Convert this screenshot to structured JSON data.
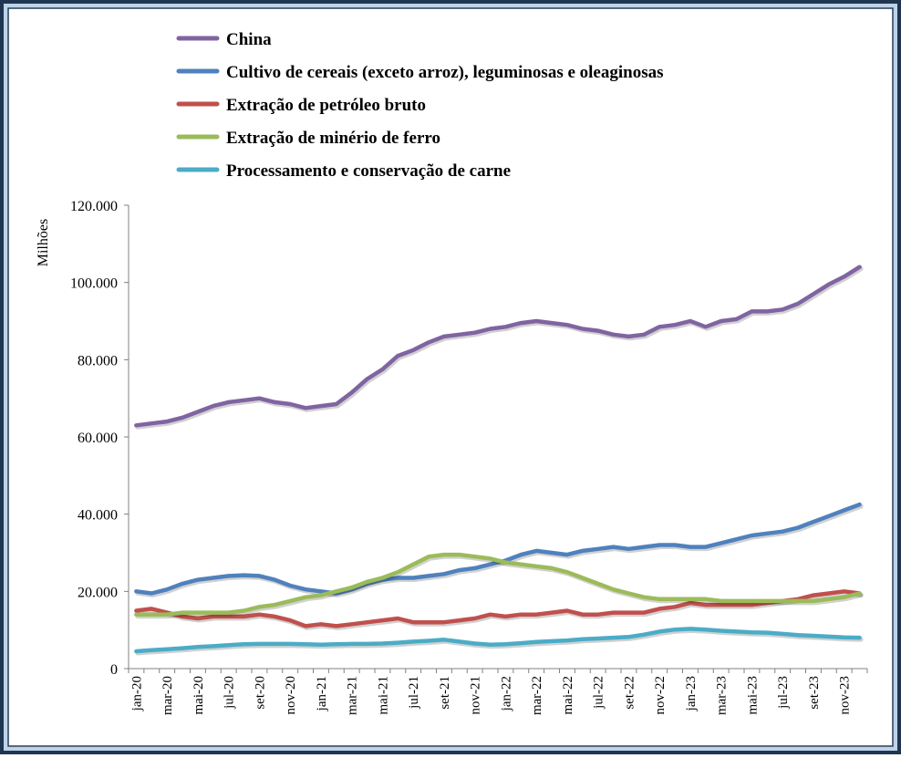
{
  "chart_data": {
    "type": "line",
    "title": "",
    "xlabel": "",
    "ylabel": "Milhões",
    "ylim": [
      0,
      120000
    ],
    "y_ticks": [
      "0",
      "20.000",
      "40.000",
      "60.000",
      "80.000",
      "100.000",
      "120.000"
    ],
    "x_ticks": [
      "jan-20",
      "mar-20",
      "mai-20",
      "jul-20",
      "set-20",
      "nov-20",
      "jan-21",
      "mar-21",
      "mai-21",
      "jul-21",
      "set-21",
      "nov-21",
      "jan-22",
      "mar-22",
      "mai-22",
      "jul-22",
      "set-22",
      "nov-22",
      "jan-23",
      "mar-23",
      "mai-23",
      "jul-23",
      "set-23",
      "nov-23"
    ],
    "grid": false,
    "legend_position": "top",
    "categories": [
      "jan-20",
      "fev-20",
      "mar-20",
      "abr-20",
      "mai-20",
      "jun-20",
      "jul-20",
      "ago-20",
      "set-20",
      "out-20",
      "nov-20",
      "dez-20",
      "jan-21",
      "fev-21",
      "mar-21",
      "abr-21",
      "mai-21",
      "jun-21",
      "jul-21",
      "ago-21",
      "set-21",
      "out-21",
      "nov-21",
      "dez-21",
      "jan-22",
      "fev-22",
      "mar-22",
      "abr-22",
      "mai-22",
      "jun-22",
      "jul-22",
      "ago-22",
      "set-22",
      "out-22",
      "nov-22",
      "dez-22",
      "jan-23",
      "fev-23",
      "mar-23",
      "abr-23",
      "mai-23",
      "jun-23",
      "jul-23",
      "ago-23",
      "set-23",
      "out-23",
      "nov-23",
      "dez-23"
    ],
    "series": [
      {
        "name": "China",
        "color": "#8064A2",
        "values": [
          63000,
          63500,
          64000,
          65000,
          66500,
          68000,
          69000,
          69500,
          70000,
          69000,
          68500,
          67500,
          68000,
          68500,
          71500,
          75000,
          77500,
          81000,
          82500,
          84500,
          86000,
          86500,
          87000,
          88000,
          88500,
          89500,
          90000,
          89500,
          89000,
          88000,
          87500,
          86500,
          86000,
          86500,
          88500,
          89000,
          90000,
          88500,
          90000,
          90500,
          92500,
          92500,
          93000,
          94500,
          97000,
          99500,
          101500,
          104000
        ]
      },
      {
        "name": "Cultivo de cereais (exceto arroz), leguminosas e oleaginosas",
        "color": "#4F81BD",
        "values": [
          20000,
          19500,
          20500,
          22000,
          23000,
          23500,
          24000,
          24200,
          24000,
          23000,
          21500,
          20500,
          20000,
          19500,
          20500,
          22000,
          23000,
          23500,
          23500,
          24000,
          24500,
          25500,
          26000,
          27000,
          28000,
          29500,
          30500,
          30000,
          29500,
          30500,
          31000,
          31500,
          31000,
          31500,
          32000,
          32000,
          31500,
          31500,
          32500,
          33500,
          34500,
          35000,
          35500,
          36500,
          38000,
          39500,
          41000,
          42500
        ]
      },
      {
        "name": "Extração de petróleo bruto",
        "color": "#C0504D",
        "values": [
          15000,
          15500,
          14500,
          13500,
          13000,
          13500,
          13500,
          13500,
          14000,
          13500,
          12500,
          11000,
          11500,
          11000,
          11500,
          12000,
          12500,
          13000,
          12000,
          12000,
          12000,
          12500,
          13000,
          14000,
          13500,
          14000,
          14000,
          14500,
          15000,
          14000,
          14000,
          14500,
          14500,
          14500,
          15500,
          16000,
          17000,
          16500,
          16500,
          16500,
          16500,
          17000,
          17500,
          18000,
          19000,
          19500,
          20000,
          19500
        ]
      },
      {
        "name": "Extração de minério de ferro",
        "color": "#9BBB59",
        "values": [
          14000,
          14000,
          14000,
          14500,
          14500,
          14500,
          14500,
          15000,
          16000,
          16500,
          17500,
          18500,
          19000,
          20000,
          21000,
          22500,
          23500,
          25000,
          27000,
          29000,
          29500,
          29500,
          29000,
          28500,
          27500,
          27000,
          26500,
          26000,
          25000,
          23500,
          22000,
          20500,
          19500,
          18500,
          18000,
          18000,
          18000,
          18000,
          17500,
          17500,
          17500,
          17500,
          17500,
          17500,
          17500,
          18000,
          18500,
          19500
        ]
      },
      {
        "name": "Processamento e conservação de carne",
        "color": "#4BACC6",
        "values": [
          4500,
          4800,
          5000,
          5300,
          5600,
          5800,
          6100,
          6300,
          6400,
          6400,
          6400,
          6300,
          6200,
          6300,
          6400,
          6400,
          6500,
          6700,
          7000,
          7200,
          7500,
          7000,
          6500,
          6200,
          6300,
          6600,
          6900,
          7100,
          7300,
          7600,
          7800,
          8000,
          8200,
          8800,
          9600,
          10100,
          10300,
          10100,
          9800,
          9600,
          9400,
          9300,
          9000,
          8700,
          8500,
          8300,
          8100,
          8000
        ]
      }
    ]
  }
}
